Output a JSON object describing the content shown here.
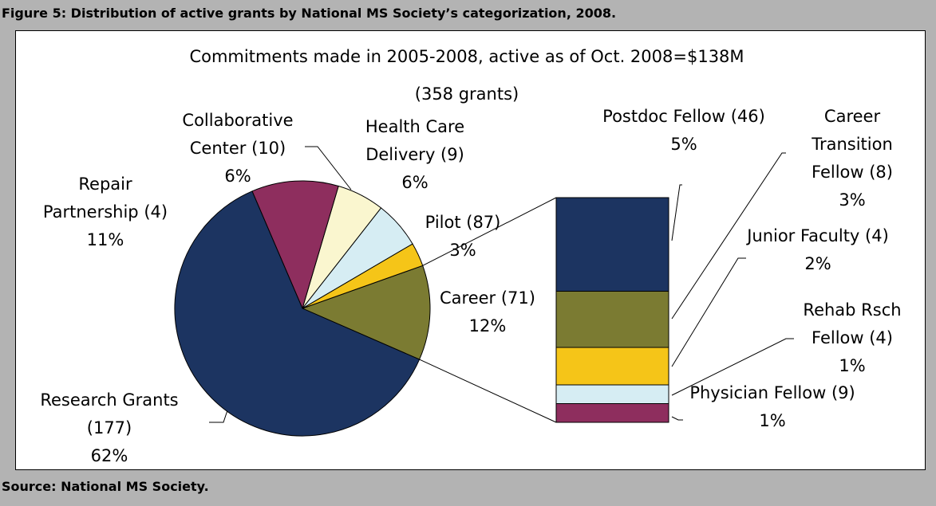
{
  "caption": "Figure 5: Distribution of active grants by National MS Society’s categorization, 2008.",
  "source": "Source: National MS Society.",
  "chart_data": {
    "type": "bar-of-pie",
    "title": "Commitments made in 2005-2008, active as of Oct. 2008=$138M",
    "subtitle": "(358 grants)",
    "categories": [
      "Career (71)",
      "Pilot (87)",
      "Health Care Delivery (9)",
      "Collaborative Center (10)",
      "Repair Partnership (4)",
      "Research Grants (177)"
    ],
    "values": [
      12,
      3,
      6,
      6,
      11,
      62
    ],
    "value_labels": [
      "12%",
      "3%",
      "6%",
      "6%",
      "11%",
      "62%"
    ],
    "colors": [
      "#7b7b32",
      "#f5c518",
      "#d6edf3",
      "#faf6cf",
      "#8e2e5e",
      "#1c3461"
    ],
    "breakdown": {
      "categories": [
        "Postdoc Fellow (46)",
        "Career Transition Fellow (8)",
        "Junior Faculty (4)",
        "Rehab Rsch Fellow (4)",
        "Physician Fellow (9)"
      ],
      "values": [
        5,
        3,
        2,
        1,
        1
      ],
      "value_labels": [
        "5%",
        "3%",
        "2%",
        "1%",
        "1%"
      ],
      "colors": [
        "#1c3461",
        "#7b7b32",
        "#f5c518",
        "#d6edf3",
        "#8e2e5e"
      ]
    }
  }
}
